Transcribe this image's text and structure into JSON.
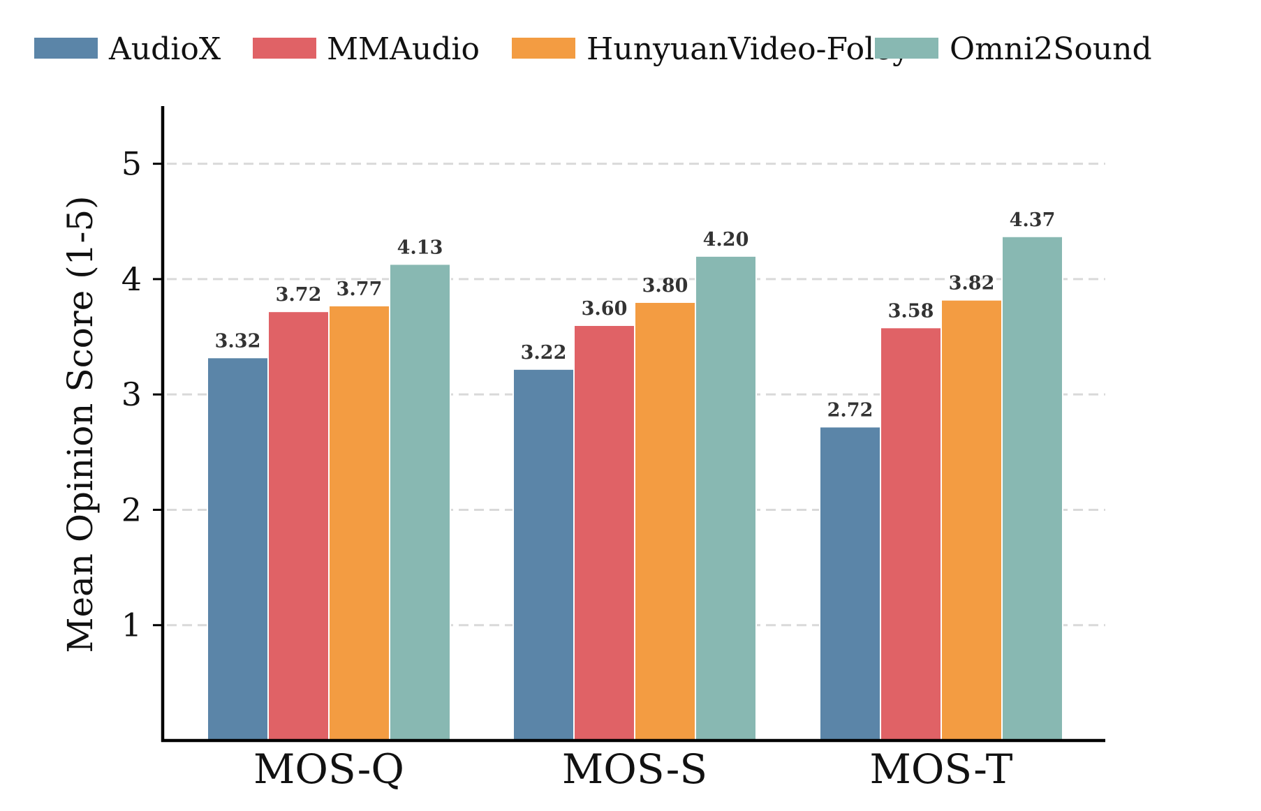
{
  "chart_data": {
    "type": "bar",
    "title": "",
    "xlabel": "",
    "ylabel": "Mean Opinion Score (1-5)",
    "categories": [
      "MOS-Q",
      "MOS-S",
      "MOS-T"
    ],
    "series": [
      {
        "name": "AudioX",
        "color": "#5b85a8",
        "values": [
          3.32,
          3.22,
          2.72
        ],
        "labels": [
          "3.32",
          "3.22",
          "2.72"
        ]
      },
      {
        "name": "MMAudio",
        "color": "#e06266",
        "values": [
          3.72,
          3.6,
          3.58
        ],
        "labels": [
          "3.72",
          "3.60",
          "3.58"
        ]
      },
      {
        "name": "HunyuanVideo-Foley",
        "color": "#f39c42",
        "values": [
          3.77,
          3.8,
          3.82
        ],
        "labels": [
          "3.77",
          "3.80",
          "3.82"
        ]
      },
      {
        "name": "Omni2Sound",
        "color": "#88b8b2",
        "values": [
          4.13,
          4.2,
          4.37
        ],
        "labels": [
          "4.13",
          "4.20",
          "4.37"
        ]
      }
    ],
    "ylim": [
      0,
      5.5
    ],
    "yticks": [
      1,
      2,
      3,
      4,
      5
    ],
    "ytick_labels": [
      "1",
      "2",
      "3",
      "4",
      "5"
    ],
    "grid": "horizontal dashed",
    "legend_position": "top"
  }
}
